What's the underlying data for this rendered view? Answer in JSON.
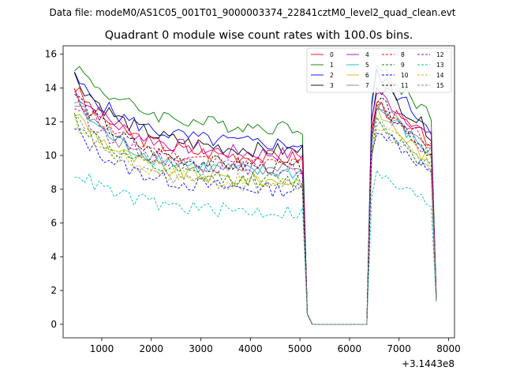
{
  "chart_data": {
    "type": "line",
    "suptitle": "Data file: modeM0/AS1C05_001T01_9000003374_22841cztM0_level2_quad_clean.evt",
    "title": "Quadrant 0 module wise count rates with 100.0s bins.",
    "xlabel": "",
    "ylabel": "",
    "x_offset_label": "+3.1443e8",
    "xlim": [
      220,
      8120
    ],
    "ylim": [
      -0.8,
      16.5
    ],
    "xticks": [
      1000,
      2000,
      3000,
      4000,
      5000,
      6000,
      7000,
      8000
    ],
    "yticks": [
      0,
      2,
      4,
      6,
      8,
      10,
      12,
      14,
      16
    ],
    "legend_position": "upper right",
    "segments": [
      {
        "x0": 450,
        "x1": 5050,
        "step": 100
      },
      {
        "x0": 5150,
        "x1": 6350,
        "step": 100
      },
      {
        "x0": 6450,
        "x1": 7750,
        "step": 100
      }
    ],
    "series": [
      {
        "name": "0",
        "color": "#ff0000",
        "dash": "solid",
        "start": 14.0,
        "level": 9.8,
        "high": 13.3,
        "tail": 10.8,
        "end": 1.6
      },
      {
        "name": "1",
        "color": "#008000",
        "dash": "solid",
        "start": 15.4,
        "level": 11.6,
        "high": 15.5,
        "tail": 12.4,
        "end": 1.8
      },
      {
        "name": "2",
        "color": "#0000ff",
        "dash": "solid",
        "start": 14.6,
        "level": 10.6,
        "high": 15.1,
        "tail": 11.6,
        "end": 1.7
      },
      {
        "name": "3",
        "color": "#000000",
        "dash": "solid",
        "start": 14.7,
        "level": 10.2,
        "high": 14.6,
        "tail": 11.3,
        "end": 1.9
      },
      {
        "name": "4",
        "color": "#bf00bf",
        "dash": "solid",
        "start": 13.9,
        "level": 10.0,
        "high": 14.0,
        "tail": 11.0,
        "end": 1.6
      },
      {
        "name": "5",
        "color": "#00bfbf",
        "dash": "solid",
        "start": 13.2,
        "level": 8.9,
        "high": 13.1,
        "tail": 10.1,
        "end": 1.5
      },
      {
        "name": "6",
        "color": "#bfbf00",
        "dash": "solid",
        "start": 12.6,
        "level": 8.4,
        "high": 12.9,
        "tail": 9.6,
        "end": 1.4
      },
      {
        "name": "7",
        "color": "#808080",
        "dash": "solid",
        "start": 13.3,
        "level": 9.0,
        "high": 13.2,
        "tail": 10.2,
        "end": 1.5
      },
      {
        "name": "8",
        "color": "#ff0000",
        "dash": "dashed",
        "start": 13.6,
        "level": 9.4,
        "high": 13.4,
        "tail": 10.6,
        "end": 1.6
      },
      {
        "name": "9",
        "color": "#008000",
        "dash": "dashed",
        "start": 12.3,
        "level": 8.4,
        "high": 12.3,
        "tail": 9.3,
        "end": 1.4
      },
      {
        "name": "10",
        "color": "#0000ff",
        "dash": "dashed",
        "start": 11.5,
        "level": 7.9,
        "high": 12.0,
        "tail": 9.0,
        "end": 1.4
      },
      {
        "name": "11",
        "color": "#000000",
        "dash": "dashed",
        "start": 13.7,
        "level": 9.2,
        "high": 13.6,
        "tail": 10.1,
        "end": 1.5
      },
      {
        "name": "12",
        "color": "#bf00bf",
        "dash": "dashed",
        "start": 13.0,
        "level": 9.1,
        "high": 13.0,
        "tail": 10.0,
        "end": 1.5
      },
      {
        "name": "13",
        "color": "#00bfbf",
        "dash": "dashed",
        "start": 9.1,
        "level": 6.6,
        "high": 9.0,
        "tail": 7.1,
        "end": 1.3
      },
      {
        "name": "14",
        "color": "#bfbf00",
        "dash": "dashed",
        "start": 12.0,
        "level": 8.3,
        "high": 12.2,
        "tail": 9.2,
        "end": 1.4
      },
      {
        "name": "15",
        "color": "#808080",
        "dash": "dashed",
        "start": 12.2,
        "level": 8.1,
        "high": 12.1,
        "tail": 9.2,
        "end": 1.4
      }
    ]
  }
}
